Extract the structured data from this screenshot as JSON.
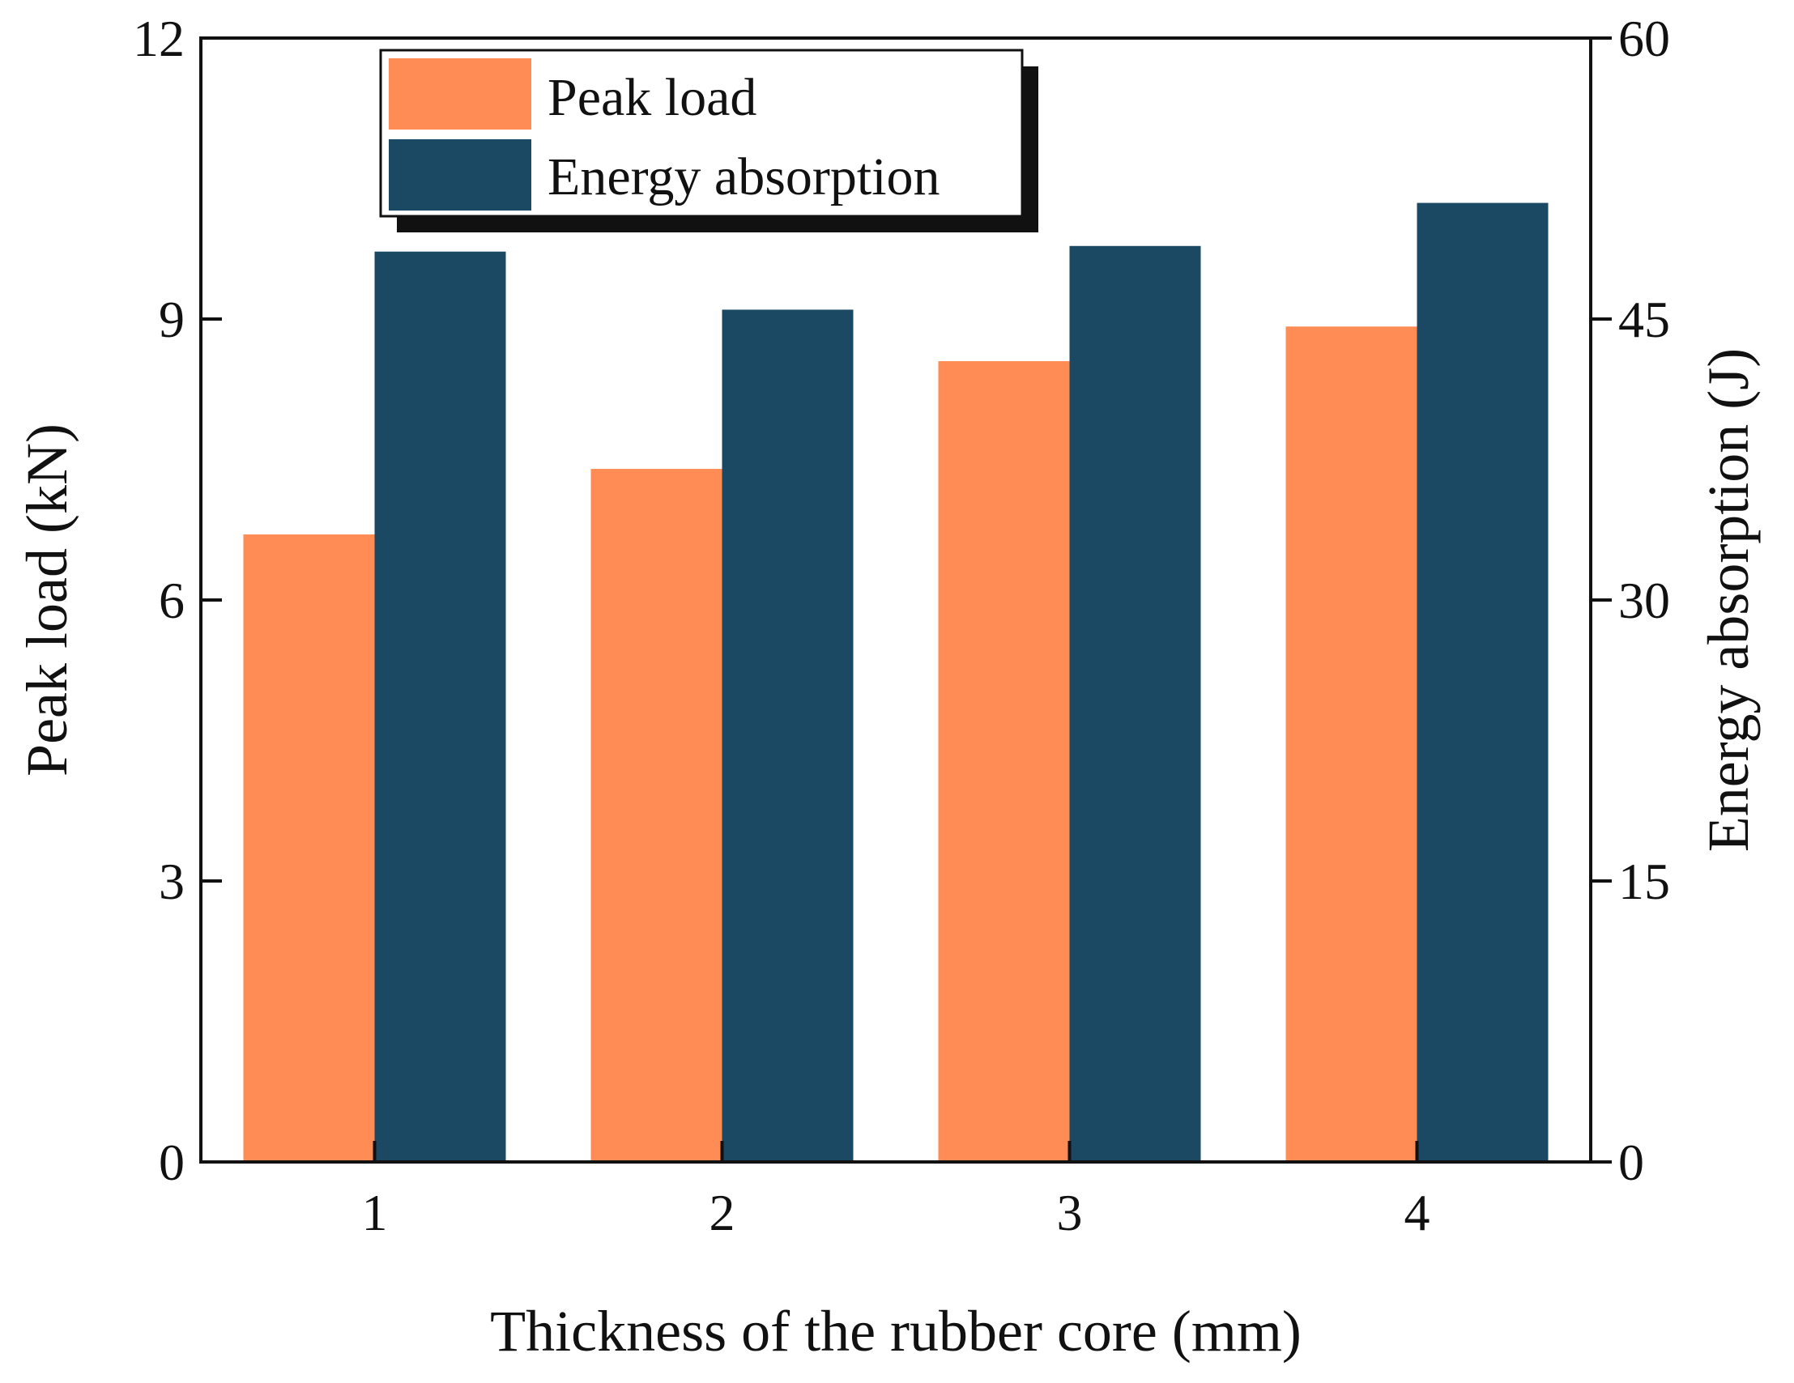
{
  "chart_data": {
    "type": "bar",
    "xlabel": "Thickness of the rubber core (mm)",
    "ylabel_left": "Peak load (kN)",
    "ylabel_right": "Energy absorption (J)",
    "categories": [
      "1",
      "2",
      "3",
      "4"
    ],
    "ylim_left": [
      0,
      12
    ],
    "ylim_right": [
      0,
      60
    ],
    "yticks_left": [
      "0",
      "3",
      "6",
      "9",
      "12"
    ],
    "yticks_right": [
      "0",
      "15",
      "30",
      "45",
      "60"
    ],
    "series": [
      {
        "name": "Peak load",
        "axis": "left",
        "color": "#FF8C55",
        "values": [
          6.7,
          7.4,
          8.55,
          8.92
        ]
      },
      {
        "name": "Energy absorption",
        "axis": "right",
        "color": "#1B4862",
        "values": [
          48.6,
          45.5,
          48.9,
          51.2
        ]
      }
    ],
    "legend_position": "top-left",
    "grid": false
  }
}
